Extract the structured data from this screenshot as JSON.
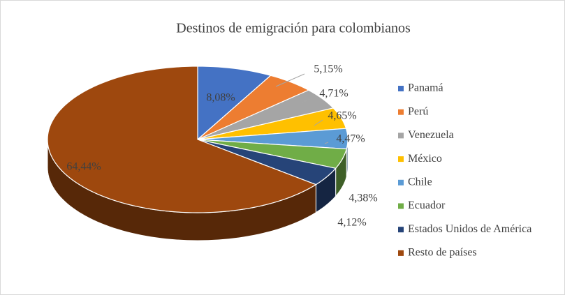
{
  "chart_data": {
    "type": "pie3d",
    "title": "Destinos de emigración para colombianos",
    "categories": [
      "Panamá",
      "Perú",
      "Venezuela",
      "México",
      "Chile",
      "Ecuador",
      "Estados Unidos de América",
      "Resto de países"
    ],
    "values": [
      8.08,
      5.15,
      4.71,
      4.65,
      4.47,
      4.38,
      4.12,
      64.44
    ],
    "value_labels": [
      "8,08%",
      "5,15%",
      "4,71%",
      "4,65%",
      "4,47%",
      "4,38%",
      "4,12%",
      "64,44%"
    ],
    "colors": [
      "#4472c4",
      "#ed7d31",
      "#a5a5a5",
      "#ffc000",
      "#5b9bd5",
      "#70ad47",
      "#264478",
      "#9e480e"
    ],
    "legend": "right"
  }
}
